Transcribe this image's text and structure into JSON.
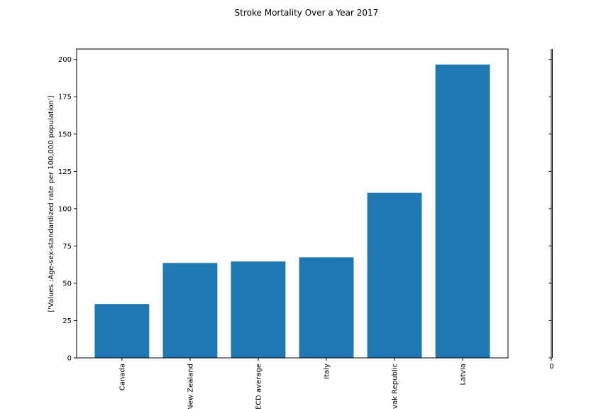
{
  "chart_data": {
    "type": "bar",
    "title": "Stroke Mortality Over a Year 2017",
    "ylabel": "['Values :Age-sex-standardized rate per 100,000 population']",
    "xlabel": "",
    "categories": [
      "Canada",
      "New Zealand",
      "OECD average",
      "Italy",
      "Slovak Republic",
      "Latvia"
    ],
    "values": [
      36.1,
      63.6,
      64.6,
      67.4,
      110.6,
      196.6
    ],
    "ylim": [
      0,
      207
    ],
    "yticks": [
      0,
      25,
      50,
      75,
      100,
      125,
      150,
      175,
      200
    ],
    "bar_color": "#1f77b4",
    "grid": false,
    "legend": "none",
    "side_axis_tick_label": "0"
  }
}
